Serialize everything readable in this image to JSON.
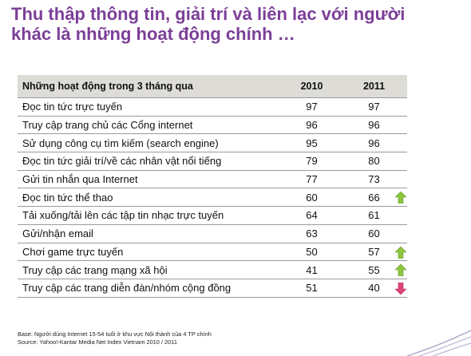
{
  "title_lines": [
    "Thu thập thông tin, giải trí và liên lạc với người",
    "khác là những hoạt động chính …"
  ],
  "table": {
    "headers": [
      "Những hoạt động trong 3 tháng qua",
      "2010",
      "2011"
    ],
    "rows": [
      {
        "activity": "Đọc tin tức trực tuyến",
        "y2010": "97",
        "y2011": "97",
        "trend": "none"
      },
      {
        "activity": "Truy cập trang chủ các Cổng internet",
        "y2010": "96",
        "y2011": "96",
        "trend": "none"
      },
      {
        "activity": "Sử dụng công cụ tìm kiếm (search engine)",
        "y2010": "95",
        "y2011": "96",
        "trend": "none"
      },
      {
        "activity": "Đọc tin tức giải trí/về các nhân vật nổi tiếng",
        "y2010": "79",
        "y2011": "80",
        "trend": "none"
      },
      {
        "activity": "Gửi tin nhắn qua Internet",
        "y2010": "77",
        "y2011": "73",
        "trend": "none"
      },
      {
        "activity": "Đọc tin tức thể thao",
        "y2010": "60",
        "y2011": "66",
        "trend": "up"
      },
      {
        "activity": "Tải xuống/tải lên các tập tin nhạc trực tuyến",
        "y2010": "64",
        "y2011": "61",
        "trend": "none"
      },
      {
        "activity": "Gửi/nhận email",
        "y2010": "63",
        "y2011": "60",
        "trend": "none"
      },
      {
        "activity": "Chơi game trực tuyến",
        "y2010": "50",
        "y2011": "57",
        "trend": "up"
      },
      {
        "activity": "Truy cập các trang mạng xã hội",
        "y2010": "41",
        "y2011": "55",
        "trend": "up"
      },
      {
        "activity": "Truy cập các trang diễn đàn/nhóm cộng đồng",
        "y2010": "51",
        "y2011": "40",
        "trend": "down"
      }
    ]
  },
  "footnote": {
    "base": "Base: Người dùng Internet 15-54 tuổi ở khu vực Nội thành của 4 TP chính",
    "source": "Source: Yahoo!-Kantar Media Net Index Vietnam  2010 / 2011"
  },
  "colors": {
    "title": "#7b3f98",
    "header_bg": "#dedcd6",
    "arrow_up": "#8dc63f",
    "arrow_down": "#e0457b"
  },
  "icons": {
    "up": "arrow-up-icon",
    "down": "arrow-down-icon"
  }
}
